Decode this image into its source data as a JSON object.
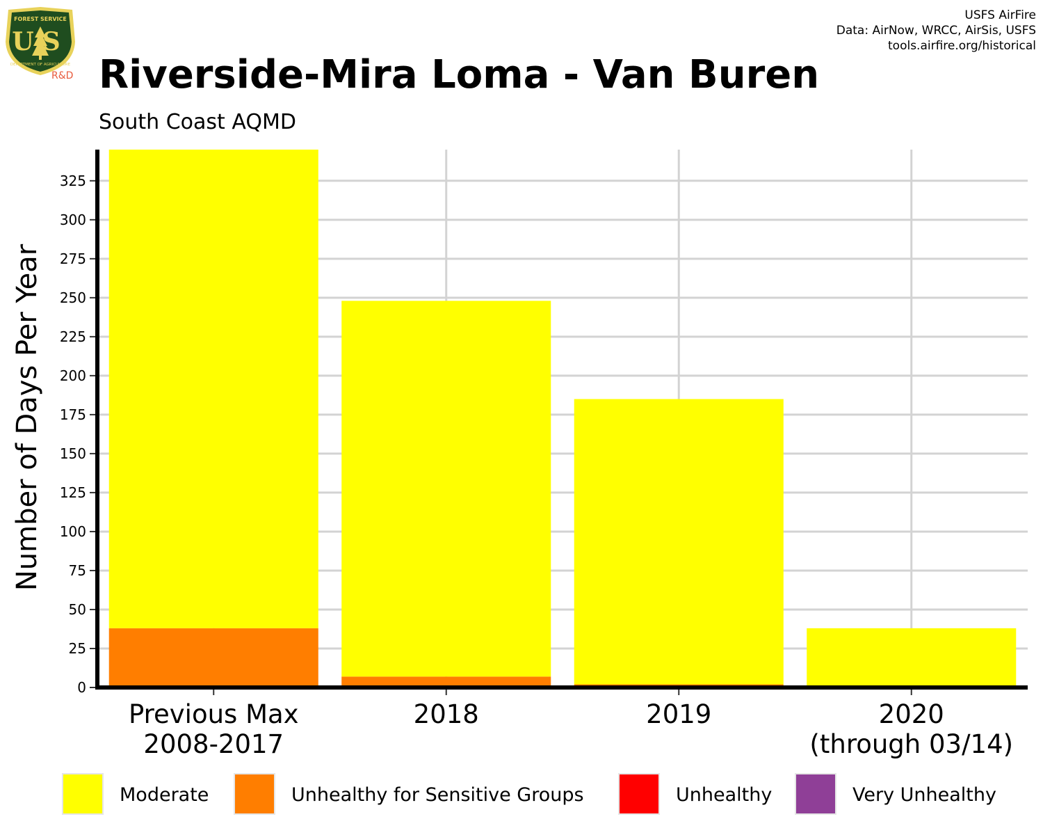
{
  "header": {
    "logo_top_text": "FOREST SERVICE",
    "logo_main_text": "US",
    "logo_bottom_text": "DEPARTMENT OF AGRICULTURE",
    "logo_tag": "R&D",
    "credits": [
      "USFS AirFire",
      "Data: AirNow, WRCC, AirSis, USFS",
      "tools.airfire.org/historical"
    ]
  },
  "colors": {
    "moderate": "#FFFF00",
    "usg": "#FF7E00",
    "unhealthy": "#FF0000",
    "very_unhealthy": "#8F3F97",
    "grid": "#d3d3d3",
    "logo_green": "#1f4d1f",
    "logo_gold": "#e8d25a",
    "logo_tag": "#e85a3c"
  },
  "chart_data": {
    "type": "bar",
    "stacked": true,
    "title": "Riverside-Mira Loma - Van Buren",
    "subtitle": "South Coast AQMD",
    "ylabel": "Number of Days Per Year",
    "xlabel": "",
    "ylim": [
      0,
      345
    ],
    "yticks": [
      0,
      25,
      50,
      75,
      100,
      125,
      150,
      175,
      200,
      225,
      250,
      275,
      300,
      325
    ],
    "grid": true,
    "legend_position": "bottom",
    "categories": [
      [
        "Previous Max",
        "2008-2017"
      ],
      [
        "2018"
      ],
      [
        "2019"
      ],
      [
        "2020",
        "(through 03/14)"
      ]
    ],
    "series": [
      {
        "name": "Unhealthy for Sensitive Groups",
        "key": "usg",
        "values": [
          38,
          7,
          2,
          0
        ]
      },
      {
        "name": "Moderate",
        "key": "moderate",
        "values": [
          307,
          241,
          183,
          38
        ]
      },
      {
        "name": "Unhealthy",
        "key": "unhealthy",
        "values": [
          0,
          0,
          0,
          0
        ]
      },
      {
        "name": "Very Unhealthy",
        "key": "very_unhealthy",
        "values": [
          0,
          0,
          0,
          0
        ]
      }
    ],
    "legend": [
      {
        "label": "Moderate",
        "key": "moderate"
      },
      {
        "label": "Unhealthy for Sensitive Groups",
        "key": "usg"
      },
      {
        "label": "Unhealthy",
        "key": "unhealthy"
      },
      {
        "label": "Very Unhealthy",
        "key": "very_unhealthy"
      }
    ]
  }
}
